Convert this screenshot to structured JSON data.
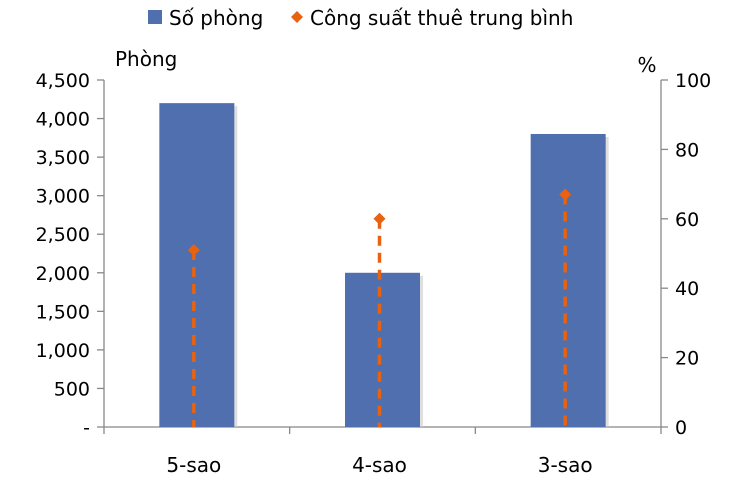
{
  "chart_data": {
    "type": "bar",
    "categories": [
      "5-sao",
      "4-sao",
      "3-sao"
    ],
    "series": [
      {
        "name": "Số phòng",
        "chart": "bar",
        "axis": "left",
        "values": [
          4200,
          2000,
          3800
        ],
        "color": "#4F6FAE"
      },
      {
        "name": "Công suất thuê trung bình",
        "chart": "dot-with-dashed-drop-line",
        "axis": "right",
        "values": [
          51,
          60,
          67
        ],
        "color": "#E8620F"
      }
    ],
    "y_left": {
      "label": "Phòng",
      "ylim": [
        0,
        4500
      ],
      "ticks": [
        0,
        500,
        1000,
        1500,
        2000,
        2500,
        3000,
        3500,
        4000,
        4500
      ],
      "tick_labels": [
        "-",
        "500",
        "1,000",
        "1,500",
        "2,000",
        "2,500",
        "3,000",
        "3,500",
        "4,000",
        "4,500"
      ]
    },
    "y_right": {
      "label": "%",
      "ylim": [
        0,
        100
      ],
      "ticks": [
        0,
        20,
        40,
        60,
        80,
        100
      ],
      "tick_labels": [
        "0",
        "20",
        "40",
        "60",
        "80",
        "100"
      ]
    },
    "legend_position": "top",
    "grid": false
  }
}
